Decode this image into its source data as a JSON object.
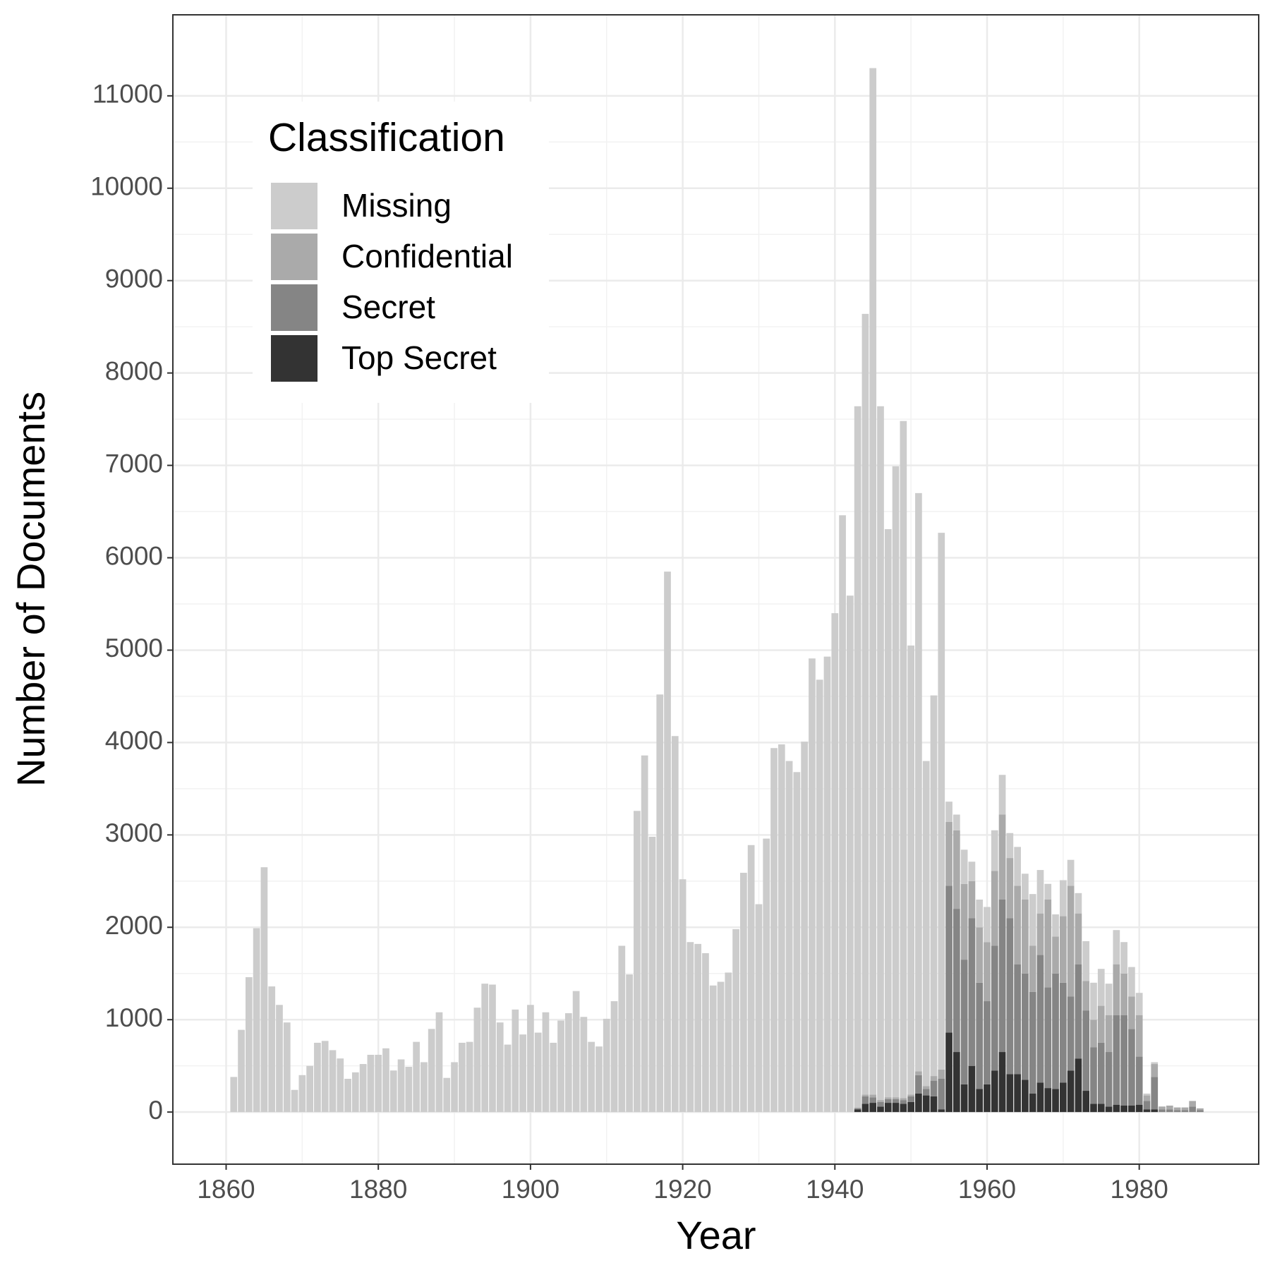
{
  "chart_data": {
    "type": "stacked_bar",
    "x_label": "Year",
    "y_label": "Number of Documents",
    "legend_title": "Classification",
    "legend_position": "top-left",
    "grid": true,
    "x": [
      1861,
      1862,
      1863,
      1864,
      1865,
      1866,
      1867,
      1868,
      1869,
      1870,
      1871,
      1872,
      1873,
      1874,
      1875,
      1876,
      1877,
      1878,
      1879,
      1880,
      1881,
      1882,
      1883,
      1884,
      1885,
      1886,
      1887,
      1888,
      1889,
      1890,
      1891,
      1892,
      1893,
      1894,
      1895,
      1896,
      1897,
      1898,
      1899,
      1900,
      1901,
      1902,
      1903,
      1904,
      1905,
      1906,
      1907,
      1908,
      1909,
      1910,
      1911,
      1912,
      1913,
      1914,
      1915,
      1916,
      1917,
      1918,
      1919,
      1920,
      1921,
      1922,
      1923,
      1924,
      1925,
      1926,
      1927,
      1928,
      1929,
      1930,
      1931,
      1932,
      1933,
      1934,
      1935,
      1936,
      1937,
      1938,
      1939,
      1940,
      1941,
      1942,
      1943,
      1944,
      1945,
      1946,
      1947,
      1948,
      1949,
      1950,
      1951,
      1952,
      1953,
      1954,
      1955,
      1956,
      1957,
      1958,
      1959,
      1960,
      1961,
      1962,
      1963,
      1964,
      1965,
      1966,
      1967,
      1968,
      1969,
      1970,
      1971,
      1972,
      1973,
      1974,
      1975,
      1976,
      1977,
      1978,
      1979,
      1980,
      1981,
      1982,
      1983,
      1984,
      1985,
      1986,
      1987,
      1988
    ],
    "series": [
      {
        "name": "Missing",
        "color": "#cccccc",
        "values": [
          380,
          890,
          1460,
          1990,
          2650,
          1360,
          1160,
          970,
          240,
          400,
          500,
          750,
          770,
          670,
          580,
          360,
          430,
          520,
          620,
          620,
          690,
          450,
          570,
          490,
          760,
          540,
          900,
          1080,
          370,
          540,
          750,
          760,
          1130,
          1390,
          1380,
          970,
          730,
          1110,
          840,
          1160,
          860,
          1080,
          750,
          990,
          1070,
          1310,
          1030,
          760,
          710,
          1010,
          1200,
          1800,
          1490,
          3260,
          3860,
          2980,
          4520,
          5850,
          4070,
          2520,
          1840,
          1820,
          1720,
          1370,
          1410,
          1510,
          1980,
          2590,
          2890,
          2250,
          2960,
          3940,
          3980,
          3800,
          3680,
          4010,
          4910,
          4680,
          4930,
          5400,
          6460,
          5590,
          7590,
          8450,
          11110,
          7510,
          6150,
          6830,
          7330,
          4860,
          6260,
          3520,
          4120,
          5810,
          220,
          170,
          370,
          210,
          300,
          380,
          440,
          430,
          270,
          420,
          280,
          560,
          470,
          170,
          240,
          390,
          280,
          220,
          430,
          400,
          400,
          340,
          370,
          340,
          320,
          240,
          20,
          20,
          0,
          0,
          0,
          0,
          0,
          0
        ]
      },
      {
        "name": "Confidential",
        "color": "#aaaaaa",
        "values": [
          0,
          0,
          0,
          0,
          0,
          0,
          0,
          0,
          0,
          0,
          0,
          0,
          0,
          0,
          0,
          0,
          0,
          0,
          0,
          0,
          0,
          0,
          0,
          0,
          0,
          0,
          0,
          0,
          0,
          0,
          0,
          0,
          0,
          0,
          0,
          0,
          0,
          0,
          0,
          0,
          0,
          0,
          0,
          0,
          0,
          0,
          0,
          0,
          0,
          0,
          0,
          0,
          0,
          0,
          0,
          0,
          0,
          0,
          0,
          0,
          0,
          0,
          0,
          0,
          0,
          0,
          0,
          0,
          0,
          0,
          0,
          0,
          0,
          0,
          0,
          0,
          0,
          0,
          0,
          0,
          0,
          0,
          10,
          20,
          30,
          20,
          20,
          20,
          20,
          20,
          40,
          30,
          50,
          100,
          690,
          850,
          820,
          400,
          600,
          640,
          810,
          920,
          650,
          850,
          800,
          500,
          450,
          950,
          400,
          720,
          1200,
          550,
          320,
          300,
          400,
          400,
          550,
          450,
          350,
          450,
          60,
          140,
          30,
          40,
          30,
          30,
          60,
          20
        ]
      },
      {
        "name": "Secret",
        "color": "#858585",
        "values": [
          0,
          0,
          0,
          0,
          0,
          0,
          0,
          0,
          0,
          0,
          0,
          0,
          0,
          0,
          0,
          0,
          0,
          0,
          0,
          0,
          0,
          0,
          0,
          0,
          0,
          0,
          0,
          0,
          0,
          0,
          0,
          0,
          0,
          0,
          0,
          0,
          0,
          0,
          0,
          0,
          0,
          0,
          0,
          0,
          0,
          0,
          0,
          0,
          0,
          0,
          0,
          0,
          0,
          0,
          0,
          0,
          0,
          0,
          0,
          0,
          0,
          0,
          0,
          0,
          0,
          0,
          0,
          0,
          0,
          0,
          0,
          0,
          0,
          0,
          0,
          0,
          0,
          0,
          0,
          0,
          0,
          0,
          10,
          80,
          60,
          50,
          40,
          40,
          40,
          60,
          200,
          70,
          170,
          330,
          1590,
          1550,
          1350,
          1600,
          1150,
          900,
          1350,
          1650,
          1690,
          1190,
          1150,
          1100,
          1380,
          1090,
          1250,
          1080,
          800,
          1020,
          870,
          610,
          660,
          590,
          970,
          980,
          830,
          520,
          90,
          350,
          30,
          30,
          20,
          20,
          60,
          20
        ]
      },
      {
        "name": "Top Secret",
        "color": "#333333",
        "values": [
          0,
          0,
          0,
          0,
          0,
          0,
          0,
          0,
          0,
          0,
          0,
          0,
          0,
          0,
          0,
          0,
          0,
          0,
          0,
          0,
          0,
          0,
          0,
          0,
          0,
          0,
          0,
          0,
          0,
          0,
          0,
          0,
          0,
          0,
          0,
          0,
          0,
          0,
          0,
          0,
          0,
          0,
          0,
          0,
          0,
          0,
          0,
          0,
          0,
          0,
          0,
          0,
          0,
          0,
          0,
          0,
          0,
          0,
          0,
          0,
          0,
          0,
          0,
          0,
          0,
          0,
          0,
          0,
          0,
          0,
          0,
          0,
          0,
          0,
          0,
          0,
          0,
          0,
          0,
          0,
          0,
          0,
          30,
          90,
          100,
          60,
          100,
          100,
          90,
          110,
          200,
          180,
          170,
          30,
          860,
          650,
          300,
          500,
          250,
          300,
          450,
          650,
          410,
          410,
          350,
          200,
          320,
          260,
          250,
          320,
          450,
          580,
          230,
          90,
          90,
          60,
          80,
          70,
          70,
          80,
          30,
          30,
          0,
          0,
          0,
          0,
          0,
          0
        ]
      }
    ],
    "xlim": [
      1853,
      1995.7
    ],
    "xticks": [
      1860,
      1880,
      1900,
      1920,
      1940,
      1960,
      1980
    ],
    "ylim": [
      -564,
      11877
    ],
    "yticks": [
      0,
      1000,
      2000,
      3000,
      4000,
      5000,
      6000,
      7000,
      8000,
      9000,
      10000,
      11000
    ]
  }
}
